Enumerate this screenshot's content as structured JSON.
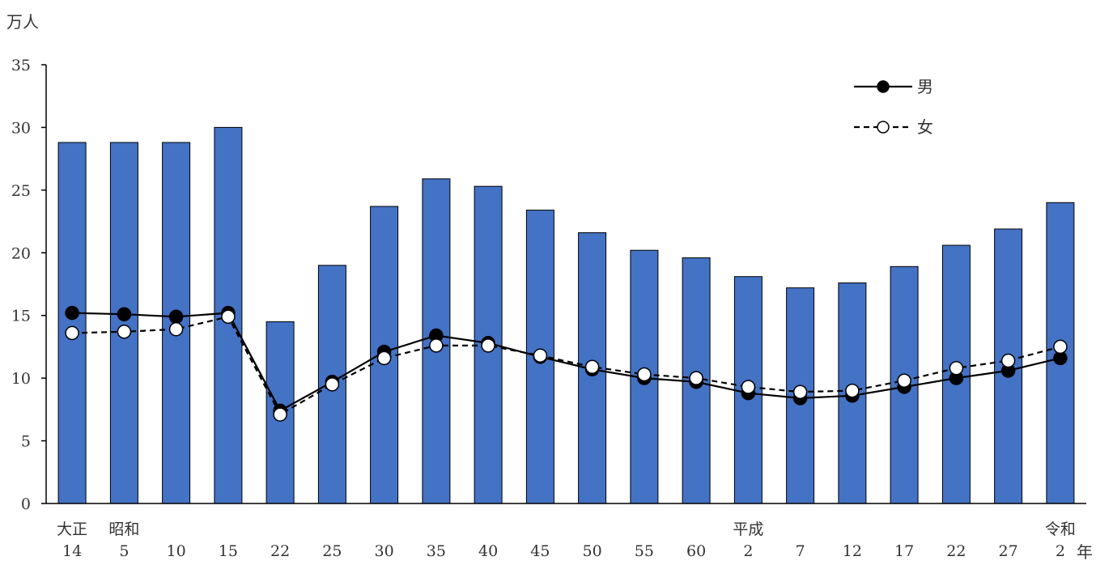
{
  "chart_data": {
    "type": "bar",
    "y_unit_label": "万人",
    "x_unit_label": "年",
    "ylim": [
      0,
      35
    ],
    "y_ticks": [
      "0",
      "5",
      "10",
      "15",
      "20",
      "25",
      "30",
      "35"
    ],
    "grid": false,
    "legend_position": "top-right",
    "categories": [
      {
        "era": "大正",
        "year": "14"
      },
      {
        "era": "昭和",
        "year": "5"
      },
      {
        "era": "",
        "year": "10"
      },
      {
        "era": "",
        "year": "15"
      },
      {
        "era": "",
        "year": "22"
      },
      {
        "era": "",
        "year": "25"
      },
      {
        "era": "",
        "year": "30"
      },
      {
        "era": "",
        "year": "35"
      },
      {
        "era": "",
        "year": "40"
      },
      {
        "era": "",
        "year": "45"
      },
      {
        "era": "",
        "year": "50"
      },
      {
        "era": "",
        "year": "55"
      },
      {
        "era": "",
        "year": "60"
      },
      {
        "era": "平成",
        "year": "2"
      },
      {
        "era": "",
        "year": "7"
      },
      {
        "era": "",
        "year": "12"
      },
      {
        "era": "",
        "year": "17"
      },
      {
        "era": "",
        "year": "22"
      },
      {
        "era": "",
        "year": "27"
      },
      {
        "era": "令和",
        "year": "2"
      }
    ],
    "bar_values": [
      28.8,
      28.8,
      28.8,
      30.0,
      14.5,
      19.0,
      23.7,
      25.9,
      25.3,
      23.4,
      21.6,
      20.2,
      19.6,
      18.1,
      17.2,
      17.6,
      18.9,
      20.6,
      21.9,
      24.0
    ],
    "series": [
      {
        "name": "男",
        "line_style": "solid",
        "marker": "filled",
        "values": [
          15.2,
          15.1,
          14.9,
          15.2,
          7.4,
          9.7,
          12.1,
          13.4,
          12.8,
          11.7,
          10.7,
          10.0,
          9.7,
          8.8,
          8.4,
          8.6,
          9.3,
          10.0,
          10.6,
          11.6
        ]
      },
      {
        "name": "女",
        "line_style": "dashed",
        "marker": "hollow",
        "values": [
          13.6,
          13.7,
          13.9,
          14.9,
          7.1,
          9.5,
          11.6,
          12.6,
          12.6,
          11.8,
          10.9,
          10.3,
          10.0,
          9.3,
          8.9,
          9.0,
          9.8,
          10.8,
          11.4,
          12.5
        ]
      }
    ],
    "colors": {
      "bar_fill": "#4472C4",
      "bar_stroke": "#000000",
      "axis": "#000000",
      "line": "#000000",
      "hollow_marker_fill": "#ffffff"
    }
  }
}
